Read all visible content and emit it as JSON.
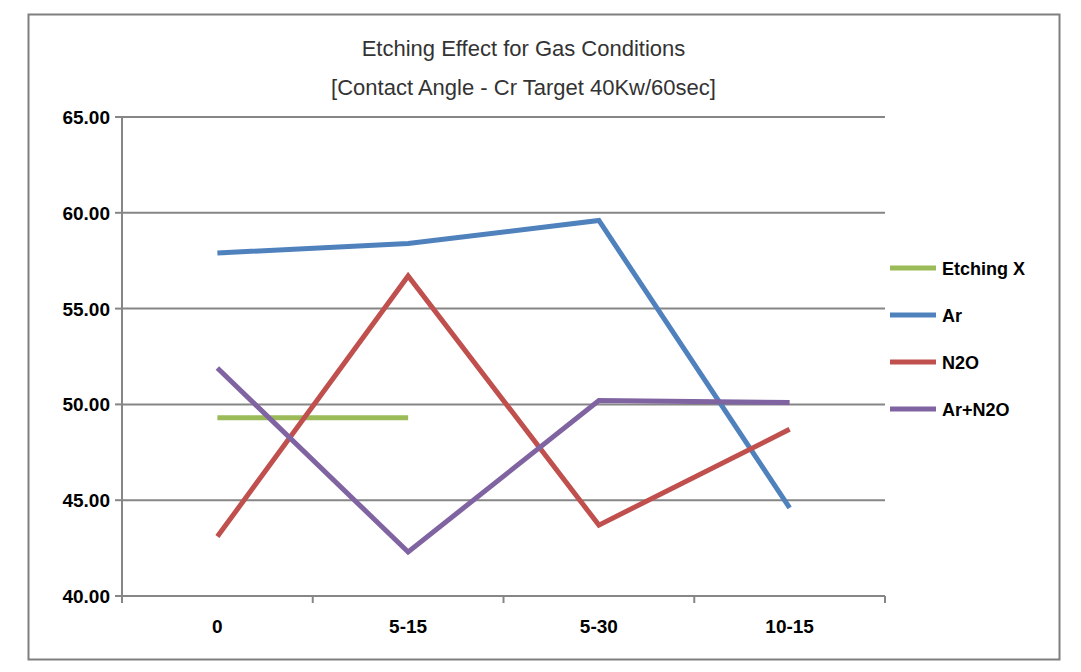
{
  "chart_data": {
    "type": "line",
    "title": "Etching Effect for Gas  Conditions",
    "subtitle": "[Contact Angle - Cr Target 40Kw/60sec]",
    "categories": [
      "0",
      "5-15",
      "5-30",
      "10-15"
    ],
    "series": [
      {
        "name": "Etching X",
        "color": "#9bbb59",
        "values": [
          49.3,
          49.3,
          null,
          null
        ]
      },
      {
        "name": "Ar",
        "color": "#4f81bd",
        "values": [
          57.9,
          58.4,
          59.6,
          44.6
        ]
      },
      {
        "name": "N2O",
        "color": "#c0504d",
        "values": [
          43.1,
          56.7,
          43.7,
          48.7
        ]
      },
      {
        "name": "Ar+N2O",
        "color": "#8064a2",
        "values": [
          51.9,
          42.3,
          50.2,
          50.1
        ]
      }
    ],
    "ylim": [
      40,
      65
    ],
    "yticks": [
      {
        "value": 40,
        "label": "40.00"
      },
      {
        "value": 45,
        "label": "45.00"
      },
      {
        "value": 50,
        "label": "50.00"
      },
      {
        "value": 55,
        "label": "55.00"
      },
      {
        "value": 60,
        "label": "60.00"
      },
      {
        "value": 65,
        "label": "65.00"
      }
    ],
    "grid": true,
    "legend": "right"
  }
}
